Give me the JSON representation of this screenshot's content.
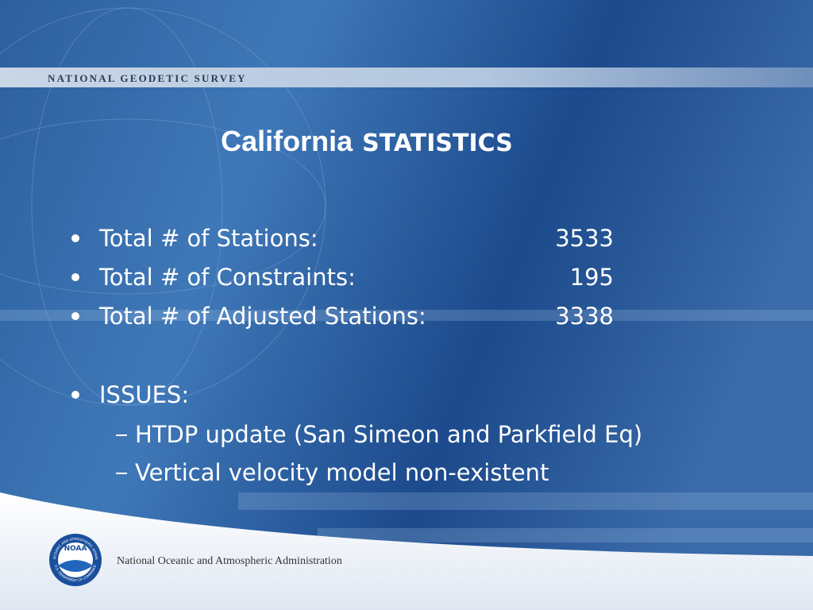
{
  "header": {
    "title": "NATIONAL GEODETIC SURVEY"
  },
  "slide": {
    "title_main": "California",
    "title_sub": "STATISTICS",
    "stats": [
      {
        "label": "Total # of Stations:",
        "value": 3533
      },
      {
        "label": "Total # of Constraints:",
        "value": 195
      },
      {
        "label": "Total # of Adjusted Stations:",
        "value": 3338
      }
    ],
    "issues": {
      "heading": "ISSUES:",
      "items": [
        "HTDP update (San Simeon and Parkfield Eq)",
        "Vertical velocity model non-existent"
      ]
    }
  },
  "footer": {
    "logo": {
      "center": "NOAA",
      "ring_top": "NATIONAL OCEANIC AND ATMOSPHERIC ADMINISTRATION",
      "ring_bottom": "U.S. DEPARTMENT OF COMMERCE"
    },
    "organization": "National Oceanic and Atmospheric Administration"
  }
}
